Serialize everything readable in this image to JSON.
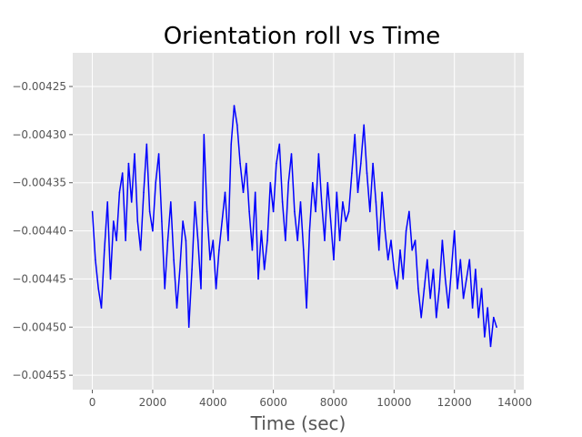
{
  "chart_data": {
    "type": "line",
    "title": "Orientation roll vs Time",
    "xlabel": "Time (sec)",
    "ylabel": "",
    "xlim": [
      -650,
      14300
    ],
    "ylim": [
      -0.004565,
      -0.004215
    ],
    "x_ticks": [
      0,
      2000,
      4000,
      6000,
      8000,
      10000,
      12000,
      14000
    ],
    "x_tick_labels": [
      "0",
      "2000",
      "4000",
      "6000",
      "8000",
      "10000",
      "12000",
      "14000"
    ],
    "y_ticks": [
      -0.00425,
      -0.0043,
      -0.00435,
      -0.0044,
      -0.00445,
      -0.0045,
      -0.00455
    ],
    "y_tick_labels": [
      "−0.00425",
      "−0.00430",
      "−0.00435",
      "−0.00440",
      "−0.00445",
      "−0.00450",
      "−0.00455"
    ],
    "grid": true,
    "style": "ggplot",
    "colors": {
      "background": "#e5e5e5",
      "grid": "#ffffff",
      "line": "#0000ff"
    },
    "series": [
      {
        "color": "#0000ff",
        "x": [
          0,
          100,
          200,
          300,
          400,
          500,
          600,
          700,
          800,
          900,
          1000,
          1100,
          1200,
          1300,
          1400,
          1500,
          1600,
          1700,
          1800,
          1900,
          2000,
          2100,
          2200,
          2300,
          2400,
          2500,
          2600,
          2700,
          2800,
          2900,
          3000,
          3100,
          3200,
          3300,
          3400,
          3500,
          3600,
          3700,
          3800,
          3900,
          4000,
          4100,
          4200,
          4300,
          4400,
          4500,
          4600,
          4700,
          4800,
          4900,
          5000,
          5100,
          5200,
          5300,
          5400,
          5500,
          5600,
          5700,
          5800,
          5900,
          6000,
          6100,
          6200,
          6300,
          6400,
          6500,
          6600,
          6700,
          6800,
          6900,
          7000,
          7100,
          7200,
          7300,
          7400,
          7500,
          7600,
          7700,
          7800,
          7900,
          8000,
          8100,
          8200,
          8300,
          8400,
          8500,
          8600,
          8700,
          8800,
          8900,
          9000,
          9100,
          9200,
          9300,
          9400,
          9500,
          9600,
          9700,
          9800,
          9900,
          10000,
          10100,
          10200,
          10300,
          10400,
          10500,
          10600,
          10700,
          10800,
          10900,
          11000,
          11100,
          11200,
          11300,
          11400,
          11500,
          11600,
          11700,
          11800,
          11900,
          12000,
          12100,
          12200,
          12300,
          12400,
          12500,
          12600,
          12700,
          12800,
          12900,
          13000,
          13100,
          13200,
          13300,
          13400
        ],
        "y": [
          -0.00438,
          -0.00443,
          -0.00446,
          -0.00448,
          -0.00442,
          -0.00437,
          -0.00445,
          -0.00439,
          -0.00441,
          -0.00436,
          -0.00434,
          -0.00441,
          -0.00433,
          -0.00437,
          -0.00432,
          -0.00439,
          -0.00442,
          -0.00436,
          -0.00431,
          -0.00438,
          -0.0044,
          -0.00435,
          -0.00432,
          -0.00439,
          -0.00446,
          -0.00441,
          -0.00437,
          -0.00443,
          -0.00448,
          -0.00444,
          -0.00439,
          -0.00441,
          -0.0045,
          -0.00444,
          -0.00437,
          -0.00441,
          -0.00446,
          -0.0043,
          -0.00438,
          -0.00443,
          -0.00441,
          -0.00446,
          -0.00442,
          -0.00439,
          -0.00436,
          -0.00441,
          -0.00431,
          -0.00427,
          -0.00429,
          -0.00433,
          -0.00436,
          -0.00433,
          -0.00438,
          -0.00442,
          -0.00436,
          -0.00445,
          -0.0044,
          -0.00444,
          -0.00441,
          -0.00435,
          -0.00438,
          -0.00433,
          -0.00431,
          -0.00437,
          -0.00441,
          -0.00435,
          -0.00432,
          -0.00438,
          -0.00441,
          -0.00437,
          -0.00442,
          -0.00448,
          -0.0044,
          -0.00435,
          -0.00438,
          -0.00432,
          -0.00437,
          -0.00441,
          -0.00435,
          -0.00439,
          -0.00443,
          -0.00436,
          -0.00441,
          -0.00437,
          -0.00439,
          -0.00438,
          -0.00434,
          -0.0043,
          -0.00436,
          -0.00433,
          -0.00429,
          -0.00434,
          -0.00438,
          -0.00433,
          -0.00437,
          -0.00442,
          -0.00436,
          -0.0044,
          -0.00443,
          -0.00441,
          -0.00444,
          -0.00446,
          -0.00442,
          -0.00445,
          -0.0044,
          -0.00438,
          -0.00442,
          -0.00441,
          -0.00446,
          -0.00449,
          -0.00446,
          -0.00443,
          -0.00447,
          -0.00444,
          -0.00449,
          -0.00446,
          -0.00441,
          -0.00445,
          -0.00448,
          -0.00444,
          -0.0044,
          -0.00446,
          -0.00443,
          -0.00447,
          -0.00445,
          -0.00443,
          -0.00448,
          -0.00444,
          -0.00449,
          -0.00446,
          -0.00451,
          -0.00448,
          -0.00452,
          -0.00449,
          -0.0045
        ]
      }
    ]
  }
}
